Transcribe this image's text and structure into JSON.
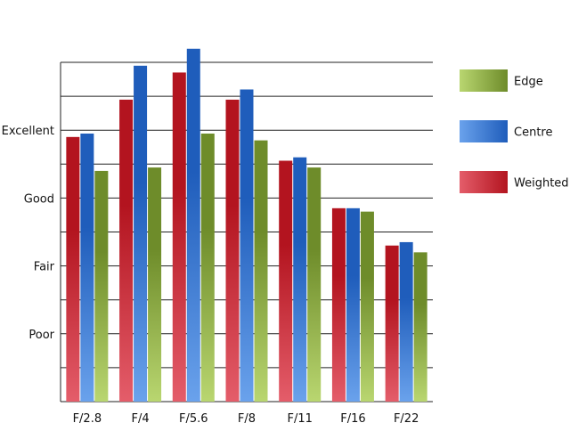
{
  "chart_data": {
    "type": "bar",
    "title": "",
    "xlabel": "",
    "ylabel": "",
    "categories": [
      "F/2.8",
      "F/4",
      "F/5.6",
      "F/8",
      "F/11",
      "F/16",
      "F/22"
    ],
    "y_tick_labels": [
      {
        "label": "Poor",
        "value": 2
      },
      {
        "label": "Fair",
        "value": 4
      },
      {
        "label": "Good",
        "value": 6
      },
      {
        "label": "Excellent",
        "value": 8
      }
    ],
    "ylim": [
      0,
      10
    ],
    "grid": "horizontal",
    "legend_position": "right",
    "series": [
      {
        "name": "Weighted",
        "color": "#b3141f",
        "light_color": "#e45d6a",
        "values": [
          7.8,
          8.9,
          9.7,
          8.9,
          7.1,
          5.7,
          4.6
        ]
      },
      {
        "name": "Centre",
        "color": "#1f5dbb",
        "light_color": "#6aa2ec",
        "values": [
          7.9,
          9.9,
          10.4,
          9.2,
          7.2,
          5.7,
          4.7
        ]
      },
      {
        "name": "Edge",
        "color": "#6e8c2a",
        "light_color": "#b9d670",
        "values": [
          6.8,
          6.9,
          7.9,
          7.7,
          6.9,
          5.6,
          4.4
        ]
      }
    ],
    "legend_order": [
      "Edge",
      "Centre",
      "Weighted"
    ]
  }
}
